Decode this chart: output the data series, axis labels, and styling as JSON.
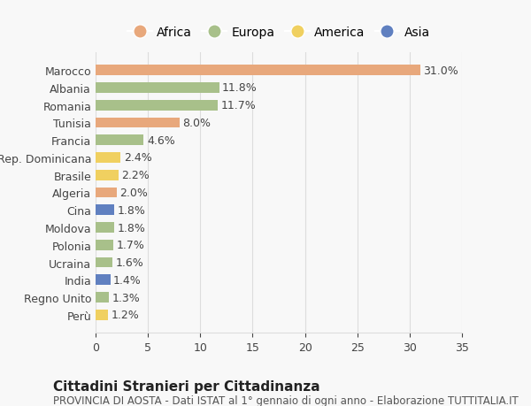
{
  "countries": [
    "Marocco",
    "Albania",
    "Romania",
    "Tunisia",
    "Francia",
    "Rep. Dominicana",
    "Brasile",
    "Algeria",
    "Cina",
    "Moldova",
    "Polonia",
    "Ucraina",
    "India",
    "Regno Unito",
    "Perù"
  ],
  "values": [
    31.0,
    11.8,
    11.7,
    8.0,
    4.6,
    2.4,
    2.2,
    2.0,
    1.8,
    1.8,
    1.7,
    1.6,
    1.4,
    1.3,
    1.2
  ],
  "continents": [
    "Africa",
    "Europa",
    "Europa",
    "Africa",
    "Europa",
    "America",
    "America",
    "Africa",
    "Asia",
    "Europa",
    "Europa",
    "Europa",
    "Asia",
    "Europa",
    "America"
  ],
  "colors": {
    "Africa": "#E8A87C",
    "Europa": "#A8C08A",
    "America": "#F0D060",
    "Asia": "#6080C0"
  },
  "legend_order": [
    "Africa",
    "Europa",
    "America",
    "Asia"
  ],
  "title": "Cittadini Stranieri per Cittadinanza",
  "subtitle": "PROVINCIA DI AOSTA - Dati ISTAT al 1° gennaio di ogni anno - Elaborazione TUTTITALIA.IT",
  "xlim": [
    0,
    35
  ],
  "xticks": [
    0,
    5,
    10,
    15,
    20,
    25,
    30,
    35
  ],
  "background_color": "#F8F8F8",
  "grid_color": "#DDDDDD",
  "bar_height": 0.6,
  "label_fontsize": 9,
  "title_fontsize": 11,
  "subtitle_fontsize": 8.5,
  "legend_fontsize": 10,
  "tick_fontsize": 9
}
